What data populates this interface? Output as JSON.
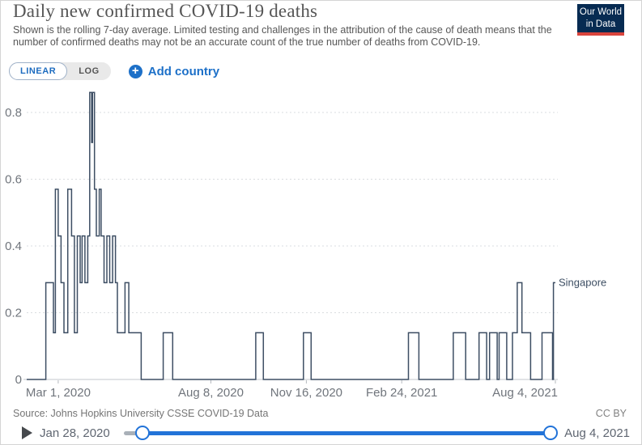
{
  "header": {
    "title": "Daily new confirmed COVID-19 deaths",
    "subtitle": "Shown is the rolling 7-day average. Limited testing and challenges in the attribution of the cause of death means that the number of confirmed deaths may not be an accurate count of the true number of deaths from COVID-19.",
    "logo": {
      "line1": "Our World",
      "line2": "in Data",
      "bg_color": "#072b52",
      "stripe_color": "#d9443c"
    }
  },
  "controls": {
    "scale_toggle": {
      "options": [
        "LINEAR",
        "LOG"
      ],
      "selected": "LINEAR"
    },
    "add_country_label": "Add country",
    "plus_glyph": "+"
  },
  "chart_data": {
    "type": "line",
    "title": "Daily new confirmed COVID-19 deaths",
    "subtitle_note": "rolling 7-day average",
    "legend_position": "end-of-line label",
    "grid": "dashed horizontal",
    "x_axis": {
      "start_date": "Jan 28, 2020",
      "end_date": "Aug 4, 2021",
      "total_days": 554,
      "ticks": [
        {
          "day": 33,
          "label": "Mar 1, 2020"
        },
        {
          "day": 193,
          "label": "Aug 8, 2020"
        },
        {
          "day": 293,
          "label": "Nov 16, 2020"
        },
        {
          "day": 393,
          "label": "Feb 24, 2021"
        },
        {
          "day": 554,
          "label": "Aug 4, 2021"
        }
      ]
    },
    "y_axis": {
      "ticks": [
        0,
        0.2,
        0.4,
        0.6,
        0.8
      ],
      "labels": [
        "0",
        "0.2",
        "0.4",
        "0.6",
        "0.8"
      ],
      "range": [
        0,
        0.87
      ]
    },
    "series": [
      {
        "name": "Singapore",
        "color": "#3d4e63",
        "unit": "deaths per day (7-day rolling average)",
        "note": "step_points are [day offset from Jan 28 2020, value]; value holds until next point; final value 0.29 on Aug 4, 2021",
        "step_points": [
          [
            0,
            0
          ],
          [
            20,
            0.29
          ],
          [
            28,
            0.14
          ],
          [
            30,
            0.57
          ],
          [
            33,
            0.43
          ],
          [
            36,
            0.29
          ],
          [
            39,
            0.14
          ],
          [
            43,
            0.57
          ],
          [
            47,
            0.43
          ],
          [
            50,
            0.14
          ],
          [
            53,
            0.43
          ],
          [
            56,
            0.29
          ],
          [
            58,
            0.43
          ],
          [
            61,
            0.29
          ],
          [
            64,
            0.43
          ],
          [
            66,
            0.86
          ],
          [
            68,
            0.71
          ],
          [
            69,
            0.86
          ],
          [
            71,
            0.57
          ],
          [
            73,
            0.43
          ],
          [
            76,
            0.57
          ],
          [
            78,
            0.43
          ],
          [
            81,
            0.29
          ],
          [
            84,
            0.43
          ],
          [
            87,
            0.29
          ],
          [
            90,
            0.43
          ],
          [
            93,
            0.29
          ],
          [
            95,
            0.14
          ],
          [
            103,
            0.29
          ],
          [
            107,
            0.14
          ],
          [
            120,
            0
          ],
          [
            143,
            0.14
          ],
          [
            153,
            0
          ],
          [
            240,
            0.14
          ],
          [
            248,
            0
          ],
          [
            290,
            0.14
          ],
          [
            298,
            0
          ],
          [
            400,
            0.14
          ],
          [
            411,
            0
          ],
          [
            447,
            0.14
          ],
          [
            460,
            0
          ],
          [
            474,
            0.14
          ],
          [
            482,
            0
          ],
          [
            485,
            0.14
          ],
          [
            493,
            0
          ],
          [
            495,
            0.14
          ],
          [
            503,
            0
          ],
          [
            509,
            0.14
          ],
          [
            514,
            0.29
          ],
          [
            519,
            0.14
          ],
          [
            528,
            0
          ],
          [
            540,
            0.14
          ],
          [
            551,
            0
          ],
          [
            552,
            0.29
          ]
        ]
      }
    ]
  },
  "footer": {
    "source": "Source: Johns Hopkins University CSSE COVID-19 Data",
    "license": "CC BY"
  },
  "timeline": {
    "start_label": "Jan 28, 2020",
    "end_label": "Aug 4, 2021",
    "start_offset_pct": 4.5,
    "track_color": "#2273d8"
  }
}
